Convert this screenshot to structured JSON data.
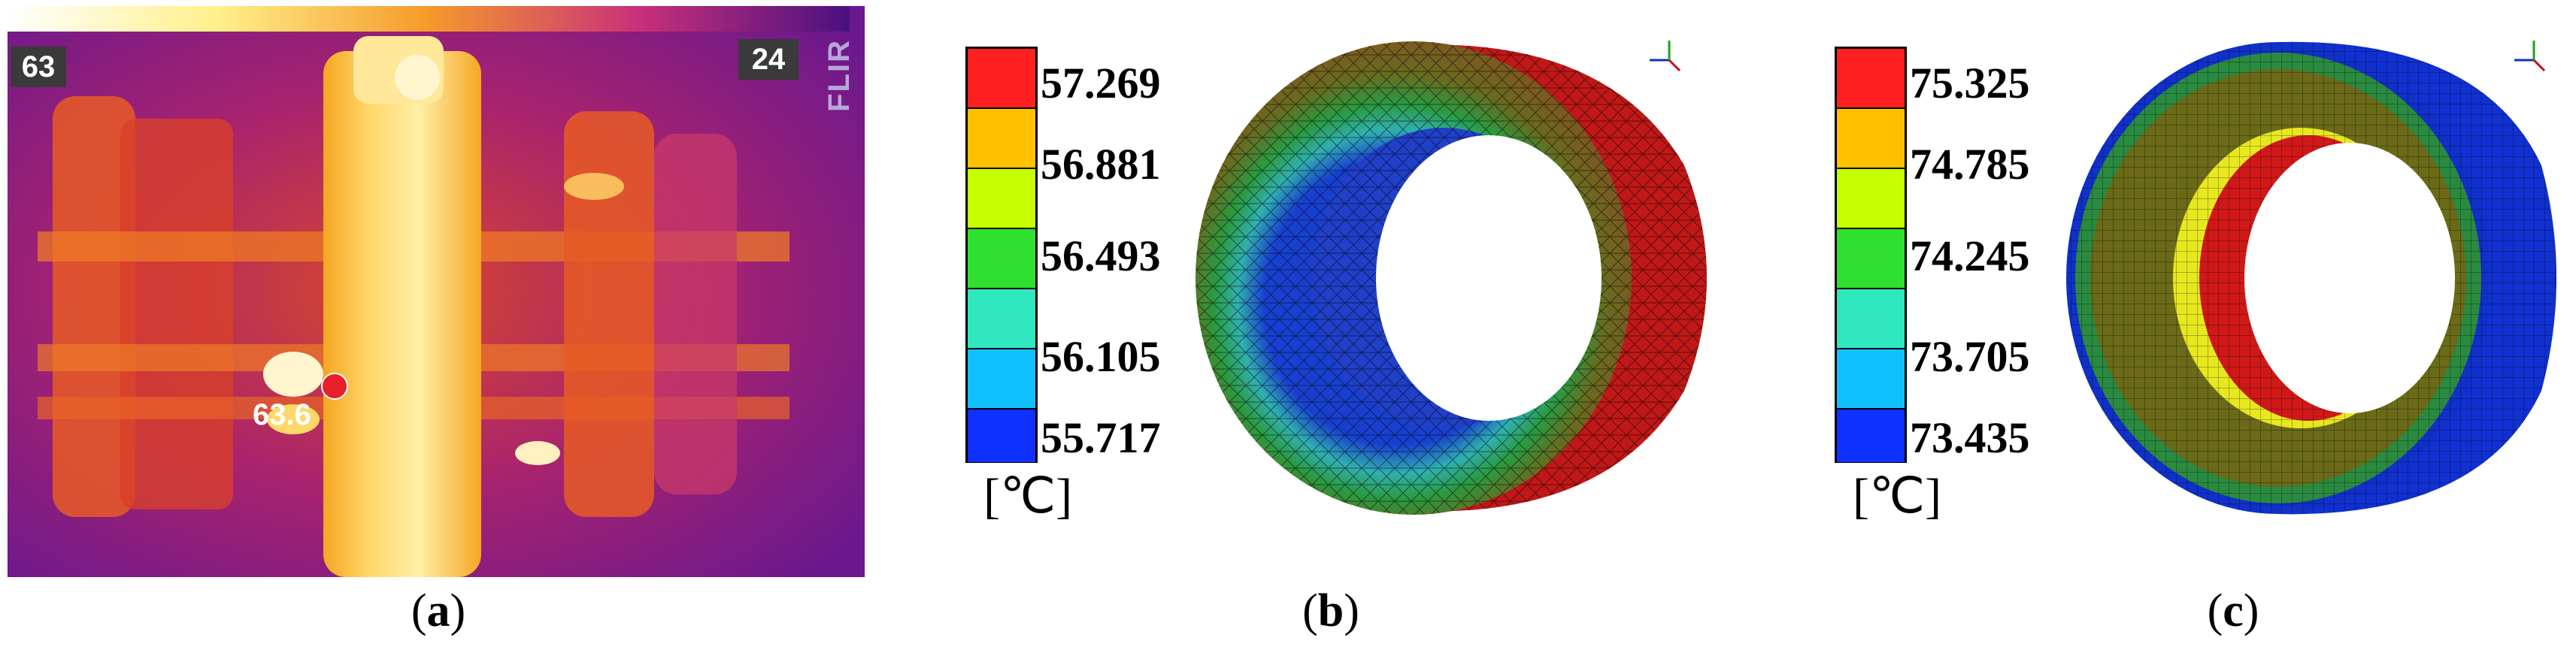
{
  "panel_a": {
    "caption": "a",
    "scale_max": "63",
    "scale_min": "24",
    "brand": "FLIR",
    "spot_value": "63.6",
    "colors": {
      "hot": "#fff7c8",
      "warm": "#f5a623",
      "mid": "#e0402a",
      "cool": "#7a1fa8",
      "cold": "#3a0b6b"
    }
  },
  "panel_b": {
    "caption": "b",
    "unit": "[℃]",
    "colorbar": [
      {
        "label": "57.269",
        "color": "#ff2020"
      },
      {
        "label": "56.881",
        "color": "#ffc000"
      },
      {
        "label": "",
        "color": "#c8ff00"
      },
      {
        "label": "56.493",
        "color": "#30e030"
      },
      {
        "label": "",
        "color": "#30e8c0"
      },
      {
        "label": "56.105",
        "color": "#10c0ff"
      },
      {
        "label": "55.717",
        "color": "#1030ff"
      }
    ]
  },
  "panel_c": {
    "caption": "c",
    "unit": "[℃]",
    "colorbar": [
      {
        "label": "75.325",
        "color": "#ff2020"
      },
      {
        "label": "74.785",
        "color": "#ffc000"
      },
      {
        "label": "",
        "color": "#c8ff00"
      },
      {
        "label": "74.245",
        "color": "#30e030"
      },
      {
        "label": "",
        "color": "#30e8c0"
      },
      {
        "label": "73.705",
        "color": "#10c0ff"
      },
      {
        "label": "73.435",
        "color": "#1030ff"
      }
    ]
  }
}
